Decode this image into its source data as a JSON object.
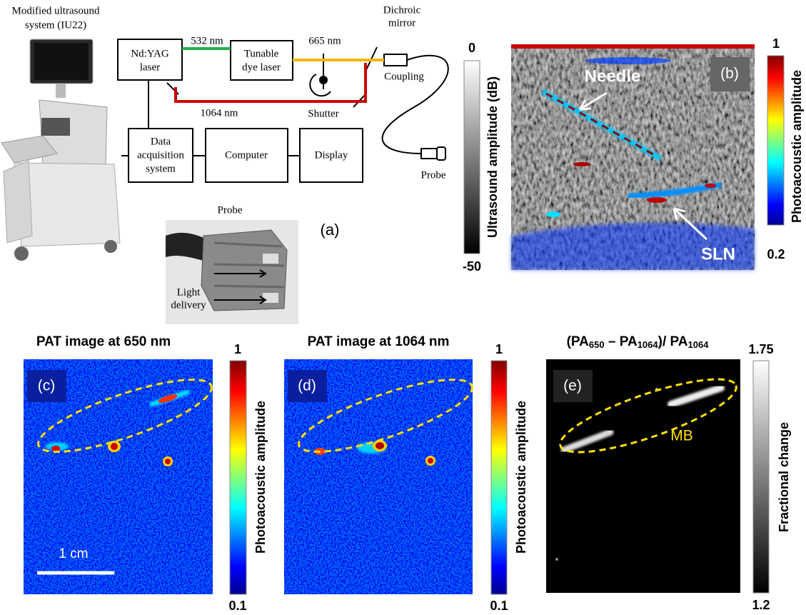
{
  "panel_a": {
    "label": "(a)",
    "system_caption": [
      "Modified ultrasound",
      "system (IU22)"
    ],
    "nd_yag_laser": [
      "Nd:YAG",
      "laser"
    ],
    "tunable_dye_laser": [
      "Tunable",
      "dye laser"
    ],
    "data_acquisition": [
      "Data",
      "acquisition",
      "system"
    ],
    "computer": "Computer",
    "display": "Display",
    "wavelength_green": "532 nm",
    "wavelength_yellow": "665 nm",
    "wavelength_red": "1064 nm",
    "dichroic_mirror": [
      "Dichroic",
      "mirror"
    ],
    "coupling": "Coupling",
    "shutter": "Shutter",
    "probe": "Probe",
    "probe_photo": {
      "title": "Probe",
      "annotation": [
        "Light",
        "delivery"
      ]
    }
  },
  "panel_b": {
    "label": "(b)",
    "needle": "Needle",
    "sln": "SLN",
    "grayscale_bar": {
      "title": "Ultrasound amplitude (dB)",
      "max": 0,
      "min": -50
    },
    "color_bar": {
      "title": "Photoacoustic amplitude",
      "max": 1,
      "min": 0.2
    }
  },
  "panel_c": {
    "label": "(c)",
    "title": "PAT image at 650 nm",
    "scale_bar": "1 cm",
    "colorbar": {
      "title": "Photoacoustic amplitude",
      "max": 1,
      "min": 0.1
    }
  },
  "panel_d": {
    "label": "(d)",
    "title": "PAT image at 1064 nm",
    "colorbar": {
      "title": "Photoacoustic amplitude",
      "max": 1,
      "min": 0.1
    }
  },
  "panel_e": {
    "label": "(e)",
    "title_parts": [
      "(PA",
      "650",
      " – PA",
      "1064",
      ")/ PA",
      "1064"
    ],
    "annotation": "MB",
    "colorbar": {
      "title": "Fractional change",
      "max": 1.75,
      "min": 1.2
    }
  }
}
